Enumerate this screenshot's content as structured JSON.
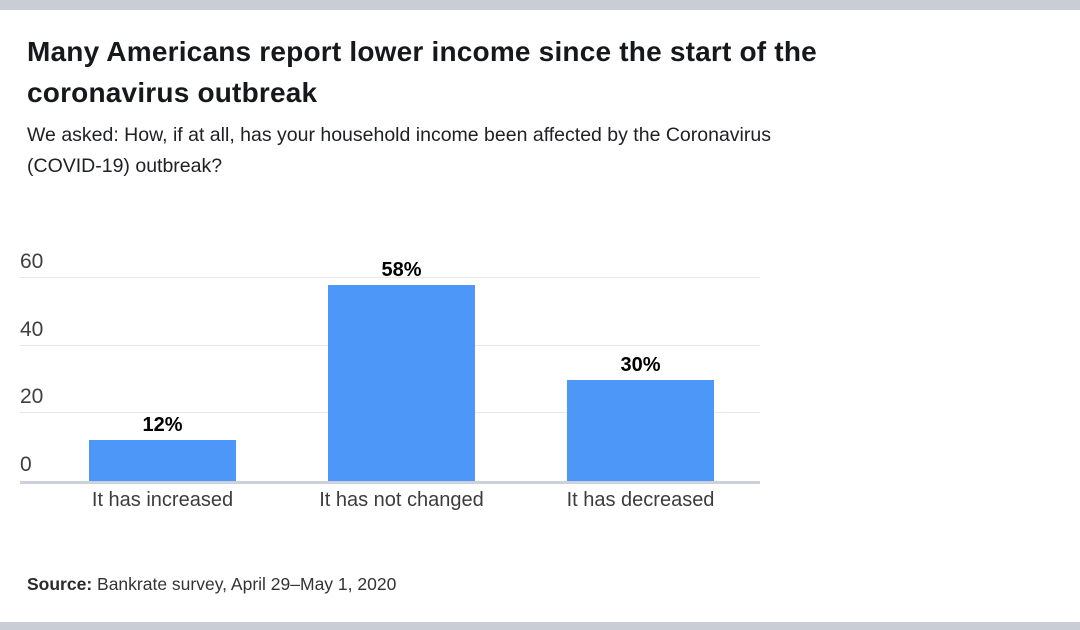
{
  "header": {
    "title": "Many Americans report lower income since the start of the coronavirus outbreak",
    "subtitle": "We asked: How, if at all, has your household income been affected by the Coronavirus (COVID-19) outbreak?"
  },
  "chart_data": {
    "type": "bar",
    "categories": [
      "It has increased",
      "It has not changed",
      "It has decreased"
    ],
    "values": [
      12,
      58,
      30
    ],
    "value_labels": [
      "12%",
      "58%",
      "30%"
    ],
    "yticks": [
      0,
      20,
      40,
      60
    ],
    "ylim": [
      0,
      60
    ],
    "bar_color": "#4c97f7",
    "gridline_color": "#e8e8e8",
    "baseline_color": "#ccd1db",
    "grid": true,
    "legend": "none",
    "title": "Many Americans report lower income since the start of the coronavirus outbreak",
    "xlabel": "",
    "ylabel": ""
  },
  "source": {
    "label": "Source:",
    "text": " Bankrate survey, April 29–May 1, 2020"
  }
}
